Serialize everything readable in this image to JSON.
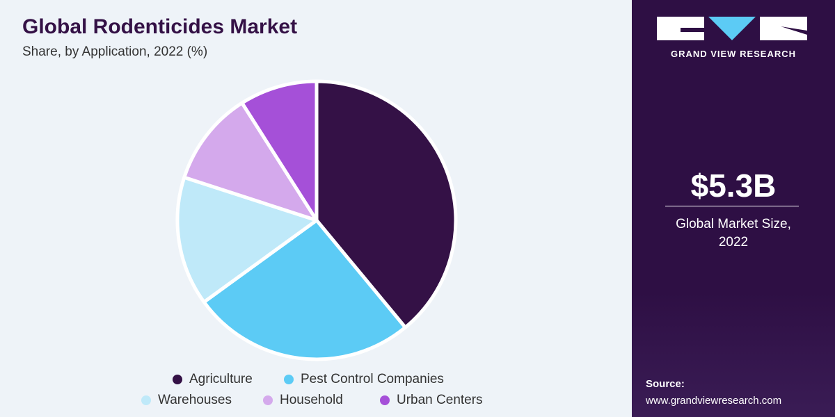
{
  "chart_data": {
    "type": "pie",
    "title": "Global Rodenticides Market",
    "subtitle": "Share, by Application, 2022 (%)",
    "categories": [
      "Agriculture",
      "Pest Control Companies",
      "Warehouses",
      "Household",
      "Urban Centers"
    ],
    "values": [
      39,
      26,
      15,
      11,
      9
    ],
    "colors": [
      "#341146",
      "#5ccbf5",
      "#bfe9f9",
      "#d4a9ec",
      "#a550d8"
    ]
  },
  "side_panel": {
    "brand": "GRAND VIEW RESEARCH",
    "market_size": "$5.3B",
    "market_size_label": "Global Market Size, 2022",
    "source_label": "Source:",
    "source_url": "www.grandviewresearch.com"
  }
}
